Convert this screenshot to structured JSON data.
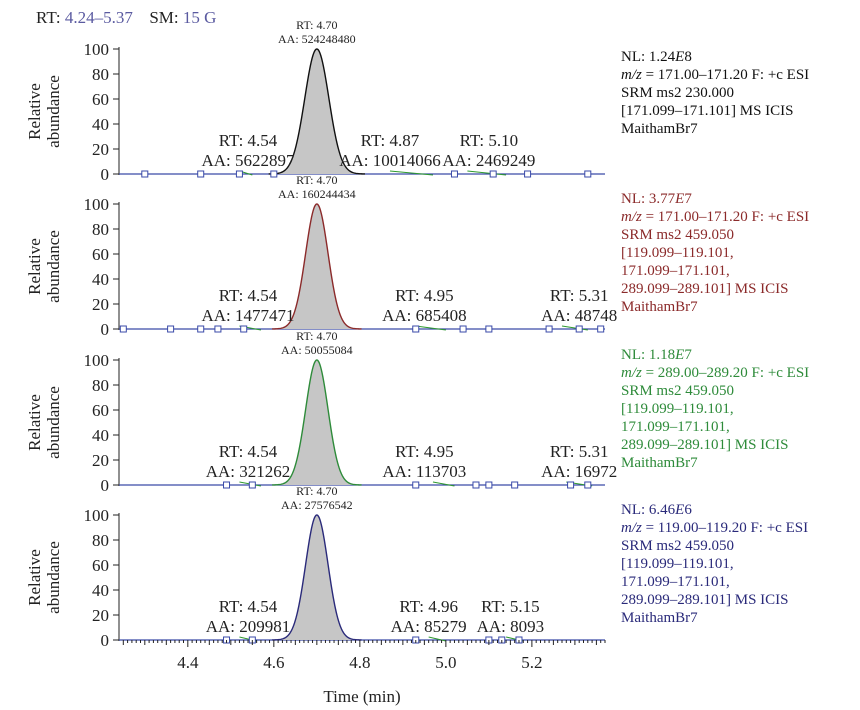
{
  "header": {
    "rt_label": "RT:",
    "rt_value": "4.24–5.37",
    "sm_label": "SM:",
    "sm_value": "15 G"
  },
  "colors": {
    "rt_value": "#5a5aa0",
    "peak_fill": "#c6c6c6",
    "baseline": "#3a4aa8",
    "marker": "#3a4aa8",
    "artifact": "#2e9a2e"
  },
  "chart_data": {
    "type": "line",
    "xlabel": "Time (min)",
    "ylabel": [
      "Relative",
      "abundance"
    ],
    "xlim": [
      4.24,
      5.37
    ],
    "xticks": [
      4.4,
      4.6,
      4.8,
      5.0,
      5.2
    ],
    "xticklabels": [
      "4.4",
      "4.6",
      "4.8",
      "5.0",
      "5.2"
    ],
    "ylim": [
      0,
      100
    ],
    "yticks": [
      0,
      20,
      40,
      60,
      80,
      100
    ],
    "panels": [
      {
        "color": "#111111",
        "info_color": "#111111",
        "peak": {
          "rt": 4.7,
          "width": 0.028,
          "top_label": "RT: 4.70",
          "aa_label": "AA: 524248480"
        },
        "minor_peaks": [
          {
            "rt": 4.54,
            "rt_label": "RT: 4.54",
            "aa_label": "AA: 5622897"
          },
          {
            "rt": 4.87,
            "rt_label": "RT: 4.87",
            "aa_label": "AA: 10014066"
          },
          {
            "rt": 5.1,
            "rt_label": "RT: 5.10",
            "aa_label": "AA: 2469249"
          }
        ],
        "markers": [
          4.3,
          4.43,
          4.52,
          4.6,
          5.02,
          5.11,
          5.19,
          5.33
        ],
        "artifacts": [
          [
            4.52,
            4.55
          ],
          [
            4.87,
            4.97
          ],
          [
            5.05,
            5.14
          ]
        ],
        "info": [
          {
            "text": "NL: 1.24",
            "em": "E",
            "after": "8"
          },
          {
            "em": "m/z",
            "text": " = 171.00–171.20 F: +c ESI"
          },
          {
            "text": "SRM ms2 230.000"
          },
          {
            "text": "[171.099–171.101] MS ICIS"
          },
          {
            "text": "MaithamBr7"
          }
        ]
      },
      {
        "color": "#8b2a2a",
        "info_color": "#8b2a2a",
        "peak": {
          "rt": 4.7,
          "width": 0.026,
          "top_label": "RT: 4.70",
          "aa_label": "AA: 160244434"
        },
        "minor_peaks": [
          {
            "rt": 4.54,
            "rt_label": "RT: 4.54",
            "aa_label": "AA: 1477471"
          },
          {
            "rt": 4.95,
            "rt_label": "RT: 4.95",
            "aa_label": "AA: 685408"
          },
          {
            "rt": 5.31,
            "rt_label": "RT: 5.31",
            "aa_label": "AA: 48748"
          }
        ],
        "markers": [
          4.25,
          4.36,
          4.43,
          4.47,
          4.53,
          4.93,
          5.04,
          5.1,
          5.24,
          5.31,
          5.36
        ],
        "artifacts": [
          [
            4.52,
            4.57
          ],
          [
            4.93,
            5.0
          ],
          [
            5.27,
            5.33
          ]
        ],
        "info": [
          {
            "text": "NL: 3.77",
            "em": "E",
            "after": "7"
          },
          {
            "em": "m/z",
            "text": " = 171.00–171.20 F: +c ESI"
          },
          {
            "text": "SRM ms2 459.050"
          },
          {
            "text": "[119.099–119.101,"
          },
          {
            "text": "171.099–171.101,"
          },
          {
            "text": "289.099–289.101] MS ICIS"
          },
          {
            "text": "MaithamBr7"
          }
        ]
      },
      {
        "color": "#2e8b3a",
        "info_color": "#2e8b3a",
        "peak": {
          "rt": 4.7,
          "width": 0.026,
          "top_label": "RT: 4.70",
          "aa_label": "AA: 50055084"
        },
        "minor_peaks": [
          {
            "rt": 4.54,
            "rt_label": "RT: 4.54",
            "aa_label": "AA: 321262"
          },
          {
            "rt": 4.95,
            "rt_label": "RT: 4.95",
            "aa_label": "AA: 113703"
          },
          {
            "rt": 5.31,
            "rt_label": "RT: 5.31",
            "aa_label": "AA: 16972"
          }
        ],
        "markers": [
          4.49,
          4.55,
          4.93,
          5.07,
          5.1,
          5.16,
          5.29,
          5.33
        ],
        "artifacts": [
          [
            4.52,
            4.57
          ],
          [
            4.97,
            5.02
          ],
          [
            5.28,
            5.34
          ]
        ],
        "info": [
          {
            "text": "NL: 1.18",
            "em": "E",
            "after": "7"
          },
          {
            "em": "m/z",
            "text": " = 289.00–289.20 F: +c ESI"
          },
          {
            "text": "SRM ms2 459.050"
          },
          {
            "text": "[119.099–119.101,"
          },
          {
            "text": "171.099–171.101,"
          },
          {
            "text": "289.099–289.101] MS ICIS"
          },
          {
            "text": "MaithamBr7"
          }
        ]
      },
      {
        "color": "#2a2a7a",
        "info_color": "#2a2a7a",
        "peak": {
          "rt": 4.7,
          "width": 0.026,
          "top_label": "RT: 4.70",
          "aa_label": "AA: 27576542"
        },
        "minor_peaks": [
          {
            "rt": 4.54,
            "rt_label": "RT: 4.54",
            "aa_label": "AA: 209981"
          },
          {
            "rt": 4.96,
            "rt_label": "RT: 4.96",
            "aa_label": "AA: 85279"
          },
          {
            "rt": 5.15,
            "rt_label": "RT: 5.15",
            "aa_label": "AA: 8093"
          }
        ],
        "markers": [
          4.49,
          4.55,
          4.93,
          5.1,
          5.13,
          5.17
        ],
        "artifacts": [
          [
            4.52,
            4.56
          ],
          [
            4.96,
            5.0
          ],
          [
            5.14,
            5.18
          ]
        ],
        "info": [
          {
            "text": "NL: 6.46",
            "em": "E",
            "after": "6"
          },
          {
            "em": "m/z",
            "text": " = 119.00–119.20 F: +c ESI"
          },
          {
            "text": "SRM ms2 459.050"
          },
          {
            "text": "[119.099–119.101,"
          },
          {
            "text": "171.099–171.101,"
          },
          {
            "text": "289.099–289.101] MS ICIS"
          },
          {
            "text": "MaithamBr7"
          }
        ]
      }
    ]
  }
}
